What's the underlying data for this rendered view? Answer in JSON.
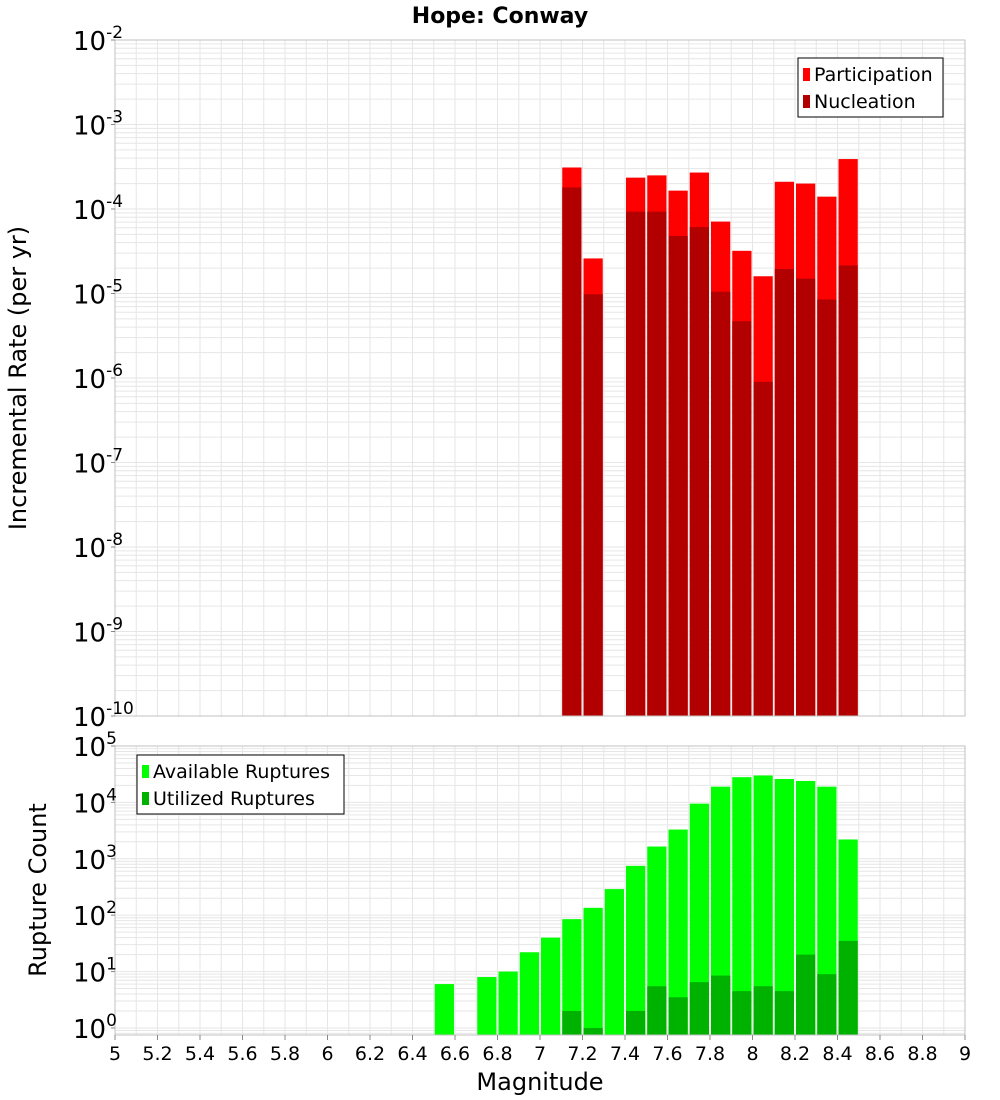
{
  "title": "Hope: Conway",
  "colors": {
    "participation": "#ff0000",
    "nucleation": "#b20000",
    "available": "#00ff00",
    "utilized": "#00b200",
    "grid": "#e6e6e6",
    "frame": "#c0c0c0"
  },
  "chart_data": [
    {
      "type": "bar",
      "name": "rate-panel",
      "ylabel": "Incremental Rate (per yr)",
      "xlim": [
        5,
        9
      ],
      "ylim": [
        1e-10,
        0.01
      ],
      "yscale": "log",
      "ytick_exponents": [
        -10,
        -9,
        -8,
        -7,
        -6,
        -5,
        -4,
        -3,
        -2
      ],
      "grid": true,
      "legend": "top-right",
      "bin_width": 0.1,
      "series": [
        {
          "name": "Participation",
          "color": "participation",
          "points": [
            {
              "x": 7.15,
              "y": 0.00031
            },
            {
              "x": 7.25,
              "y": 2.6e-05
            },
            {
              "x": 7.45,
              "y": 0.000235
            },
            {
              "x": 7.55,
              "y": 0.00025
            },
            {
              "x": 7.65,
              "y": 0.000165
            },
            {
              "x": 7.75,
              "y": 0.00027
            },
            {
              "x": 7.85,
              "y": 7.1e-05
            },
            {
              "x": 7.95,
              "y": 3.2e-05
            },
            {
              "x": 8.05,
              "y": 1.6e-05
            },
            {
              "x": 8.15,
              "y": 0.00021
            },
            {
              "x": 8.25,
              "y": 0.0002
            },
            {
              "x": 8.35,
              "y": 0.00014
            },
            {
              "x": 8.45,
              "y": 0.00039
            }
          ]
        },
        {
          "name": "Nucleation",
          "color": "nucleation",
          "points": [
            {
              "x": 7.15,
              "y": 0.00018
            },
            {
              "x": 7.25,
              "y": 9.8e-06
            },
            {
              "x": 7.45,
              "y": 9.3e-05
            },
            {
              "x": 7.55,
              "y": 9.3e-05
            },
            {
              "x": 7.65,
              "y": 4.8e-05
            },
            {
              "x": 7.75,
              "y": 6.1e-05
            },
            {
              "x": 7.85,
              "y": 1.05e-05
            },
            {
              "x": 7.95,
              "y": 4.7e-06
            },
            {
              "x": 8.05,
              "y": 9e-07
            },
            {
              "x": 8.15,
              "y": 1.95e-05
            },
            {
              "x": 8.25,
              "y": 1.5e-05
            },
            {
              "x": 8.35,
              "y": 8.5e-06
            },
            {
              "x": 8.45,
              "y": 2.15e-05
            }
          ]
        }
      ]
    },
    {
      "type": "bar",
      "name": "count-panel",
      "xlabel": "Magnitude",
      "ylabel": "Rupture Count",
      "xlim": [
        5,
        9
      ],
      "ylim": [
        0.75,
        100000.0
      ],
      "yscale": "log",
      "ytick_exponents": [
        0,
        1,
        2,
        3,
        4,
        5
      ],
      "xticks": [
        "5",
        "5.2",
        "5.4",
        "5.6",
        "5.8",
        "6",
        "6.2",
        "6.4",
        "6.6",
        "6.8",
        "7",
        "7.2",
        "7.4",
        "7.6",
        "7.8",
        "8",
        "8.2",
        "8.4",
        "8.6",
        "8.8",
        "9"
      ],
      "grid": true,
      "legend": "top-left",
      "bin_width": 0.1,
      "series": [
        {
          "name": "Available Ruptures",
          "color": "available",
          "points": [
            {
              "x": 6.55,
              "y": 6
            },
            {
              "x": 6.75,
              "y": 8
            },
            {
              "x": 6.85,
              "y": 10
            },
            {
              "x": 6.95,
              "y": 22
            },
            {
              "x": 7.05,
              "y": 40
            },
            {
              "x": 7.15,
              "y": 85
            },
            {
              "x": 7.25,
              "y": 135
            },
            {
              "x": 7.35,
              "y": 290
            },
            {
              "x": 7.45,
              "y": 750
            },
            {
              "x": 7.55,
              "y": 1650
            },
            {
              "x": 7.65,
              "y": 3300
            },
            {
              "x": 7.75,
              "y": 9500
            },
            {
              "x": 7.85,
              "y": 19000
            },
            {
              "x": 7.95,
              "y": 28000
            },
            {
              "x": 8.05,
              "y": 30000
            },
            {
              "x": 8.15,
              "y": 26000
            },
            {
              "x": 8.25,
              "y": 24000
            },
            {
              "x": 8.35,
              "y": 19000
            },
            {
              "x": 8.45,
              "y": 2200
            }
          ]
        },
        {
          "name": "Utilized Ruptures",
          "color": "utilized",
          "points": [
            {
              "x": 7.15,
              "y": 2
            },
            {
              "x": 7.25,
              "y": 1
            },
            {
              "x": 7.45,
              "y": 2
            },
            {
              "x": 7.55,
              "y": 5.5
            },
            {
              "x": 7.65,
              "y": 3.5
            },
            {
              "x": 7.75,
              "y": 6.5
            },
            {
              "x": 7.85,
              "y": 8.5
            },
            {
              "x": 7.95,
              "y": 4.5
            },
            {
              "x": 8.05,
              "y": 5.5
            },
            {
              "x": 8.15,
              "y": 4.5
            },
            {
              "x": 8.25,
              "y": 20
            },
            {
              "x": 8.35,
              "y": 9
            },
            {
              "x": 8.45,
              "y": 35
            }
          ]
        }
      ]
    }
  ]
}
